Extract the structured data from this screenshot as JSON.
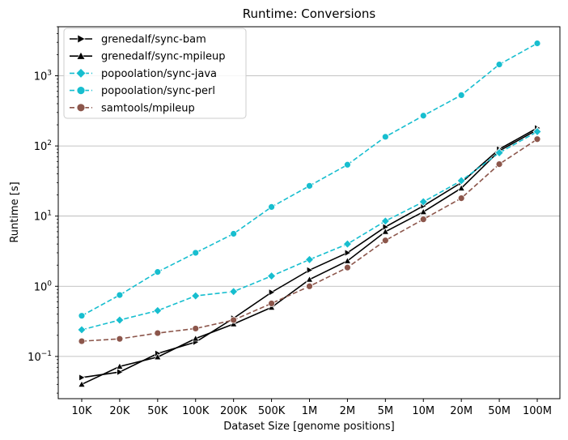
{
  "chart_data": {
    "type": "line",
    "title": "Runtime:  Conversions",
    "xlabel": "Dataset Size  [genome positions]",
    "ylabel": "Runtime  [s]",
    "yscale": "log",
    "ylim": [
      0.025,
      5000
    ],
    "grid": "y-major",
    "legend_position": "top-left",
    "categories": [
      "10K",
      "20K",
      "50K",
      "100K",
      "200K",
      "500K",
      "1M",
      "2M",
      "5M",
      "10M",
      "20M",
      "50M",
      "100M"
    ],
    "y_ticks": [
      {
        "value": 0.1,
        "base": "10",
        "exp": "−1"
      },
      {
        "value": 1,
        "base": "10",
        "exp": "0"
      },
      {
        "value": 10,
        "base": "10",
        "exp": "1"
      },
      {
        "value": 100,
        "base": "10",
        "exp": "2"
      },
      {
        "value": 1000,
        "base": "10",
        "exp": "3"
      }
    ],
    "series": [
      {
        "name": "grenedalf/sync-bam",
        "color": "#000000",
        "dash": "solid",
        "marker": "triangle-right",
        "values": [
          0.05,
          0.06,
          0.11,
          0.16,
          0.35,
          0.82,
          1.7,
          3.0,
          7.0,
          14,
          30,
          90,
          180
        ]
      },
      {
        "name": "grenedalf/sync-mpileup",
        "color": "#000000",
        "dash": "solid",
        "marker": "triangle-up",
        "values": [
          0.04,
          0.072,
          0.098,
          0.18,
          0.29,
          0.5,
          1.25,
          2.3,
          6.0,
          11.5,
          25,
          85,
          170
        ]
      },
      {
        "name": "popoolation/sync-java",
        "color": "#17becf",
        "dash": "dashed",
        "marker": "diamond",
        "values": [
          0.24,
          0.33,
          0.45,
          0.73,
          0.84,
          1.4,
          2.4,
          4.0,
          8.5,
          16,
          32,
          80,
          160
        ]
      },
      {
        "name": "popoolation/sync-perl",
        "color": "#17becf",
        "dash": "dashed",
        "marker": "circle",
        "values": [
          0.38,
          0.75,
          1.6,
          3.0,
          5.6,
          13.5,
          27,
          54,
          135,
          270,
          530,
          1450,
          2900
        ]
      },
      {
        "name": "samtools/mpileup",
        "color": "#8c564b",
        "dash": "dashed",
        "marker": "circle",
        "values": [
          0.165,
          0.178,
          0.215,
          0.25,
          0.33,
          0.57,
          1.0,
          1.85,
          4.5,
          9.0,
          18,
          55,
          125
        ]
      }
    ]
  }
}
